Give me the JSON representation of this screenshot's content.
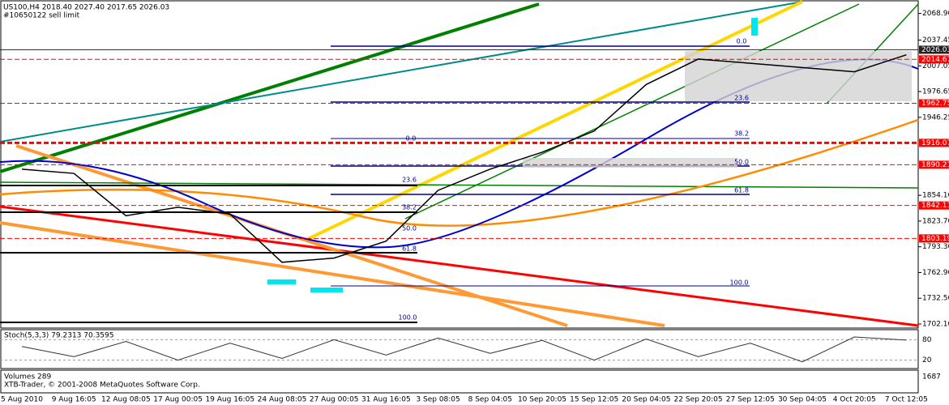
{
  "chart_data": {
    "type": "line",
    "header": "US100,H4  2018.40 2027.40 2017.65 2026.03",
    "order_note": "#10650122 sell limit",
    "categories": [
      "5 Aug 2010",
      "9 Aug 16:05",
      "12 Aug 08:05",
      "17 Aug 00:05",
      "19 Aug 16:05",
      "24 Aug 08:05",
      "27 Aug 00:05",
      "31 Aug 16:05",
      "3 Sep 08:05",
      "8 Sep 04:05",
      "10 Sep 20:05",
      "15 Sep 12:05",
      "20 Sep 04:05",
      "22 Sep 20:05",
      "27 Sep 12:05",
      "30 Sep 04:05",
      "4 Oct 20:05",
      "7 Oct 12:05"
    ],
    "values": [
      1885,
      1880,
      1830,
      1840,
      1832,
      1775,
      1780,
      1800,
      1860,
      1885,
      1905,
      1930,
      1985,
      2015,
      2010,
      2005,
      2000,
      2020
    ],
    "color": "#000000",
    "ylim": [
      1702.1,
      2080
    ],
    "yticks": [
      {
        "value": 2068.9,
        "label": "2068.90"
      },
      {
        "value": 2037.45,
        "label": "2037.45"
      },
      {
        "value": 2007.05,
        "label": "2007.05"
      },
      {
        "value": 1976.65,
        "label": "1976.65"
      },
      {
        "value": 1946.25,
        "label": "1946.25"
      },
      {
        "value": 1854.1,
        "label": "1854.10"
      },
      {
        "value": 1823.7,
        "label": "1823.70"
      },
      {
        "value": 1793.3,
        "label": "1793.30"
      },
      {
        "value": 1762.9,
        "label": "1762.90"
      },
      {
        "value": 1732.5,
        "label": "1732.50"
      },
      {
        "value": 1702.1,
        "label": "1702.10"
      }
    ],
    "levels": [
      2026.03,
      2014.67,
      1962.75,
      1916.07,
      1890.21,
      1842.11,
      1803.19
    ],
    "level_colors": [
      "#222222",
      "#ff0000",
      "#ff0000",
      "#ff0000",
      "#ff0000",
      "#ff0000",
      "#ff0000"
    ],
    "fib_labels": [
      {
        "value": 0,
        "label": "0.0"
      },
      23.6,
      38.2,
      {
        "value": 50,
        "label": "50.0"
      },
      61.8,
      {
        "value": 100,
        "label": "100.0"
      },
      {
        "value": 0,
        "label": "0.0"
      },
      23.6,
      38.2,
      {
        "value": 50,
        "label": "50.0"
      },
      61.8,
      {
        "value": 100,
        "label": "100.0"
      }
    ],
    "stoch": {
      "title": "Stoch(5,3,3) 79.2313 70.3595",
      "ylim": [
        0,
        100
      ],
      "yticks": [
        80,
        20
      ],
      "values": [
        60,
        30,
        75,
        20,
        70,
        25,
        80,
        35,
        85,
        40,
        78,
        20,
        82,
        30,
        70,
        15,
        88,
        79
      ]
    },
    "volume": {
      "title": "Volumes 289",
      "yticks": [
        1687
      ]
    },
    "copyright": "XTB-Trader, © 2001-2008 MetaQuotes Software Corp."
  }
}
